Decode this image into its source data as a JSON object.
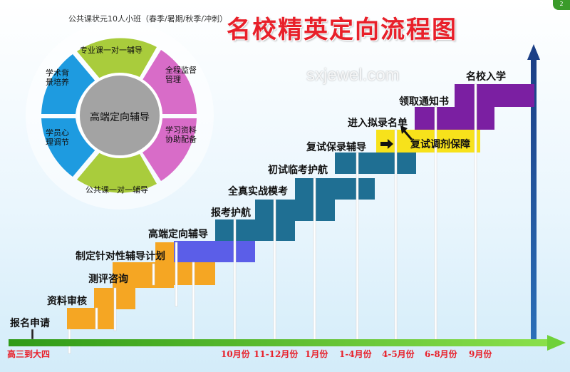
{
  "title": "名校精英定向流程图",
  "watermark": "sxjewel.com",
  "badge": "2",
  "colors": {
    "orange": "#f5a623",
    "blue_violet": "#5b5ee8",
    "teal_blue": "#1f6f93",
    "yellow": "#f7e21b",
    "purple": "#7b1fa2",
    "ring_blue": "#1e9be0",
    "ring_pink": "#d86cc8",
    "ring_green": "#a9cc3c",
    "center_grey": "#a3a3a3",
    "axis_green": "#6fd13a",
    "title_red": "#e8202a"
  },
  "ring": {
    "outer_label": "公共课状元10人小班（春季/暑期/秋季/冲刺）",
    "center": "高端定向辅导",
    "segments": [
      {
        "label": "专业课一对一辅导"
      },
      {
        "label": "全程监督管理"
      },
      {
        "label": "学习资料协助配备"
      },
      {
        "label": "公共课一对一辅导"
      },
      {
        "label": "学员心理调节"
      },
      {
        "label": "学术背景培养"
      }
    ]
  },
  "steps": [
    {
      "label": "报名申请"
    },
    {
      "label": "资料审核"
    },
    {
      "label": "测评咨询"
    },
    {
      "label": "制定针对性辅导计划"
    },
    {
      "label": "高端定向辅导"
    },
    {
      "label": "报考护航"
    },
    {
      "label": "全真实战模考"
    },
    {
      "label": "初试临考护航"
    },
    {
      "label": "复试保录辅导"
    },
    {
      "label": "进入拟录名单"
    },
    {
      "label": "复试调剂保障"
    },
    {
      "label": "领取通知书"
    },
    {
      "label": "名校入学"
    }
  ],
  "timeline": [
    {
      "label": "高三到大四"
    },
    {
      "label": "10月份"
    },
    {
      "label": "11-12月份"
    },
    {
      "label": "1月份"
    },
    {
      "label": "1-4月份"
    },
    {
      "label": "4-5月份"
    },
    {
      "label": "6-8月份"
    },
    {
      "label": "9月份"
    }
  ]
}
